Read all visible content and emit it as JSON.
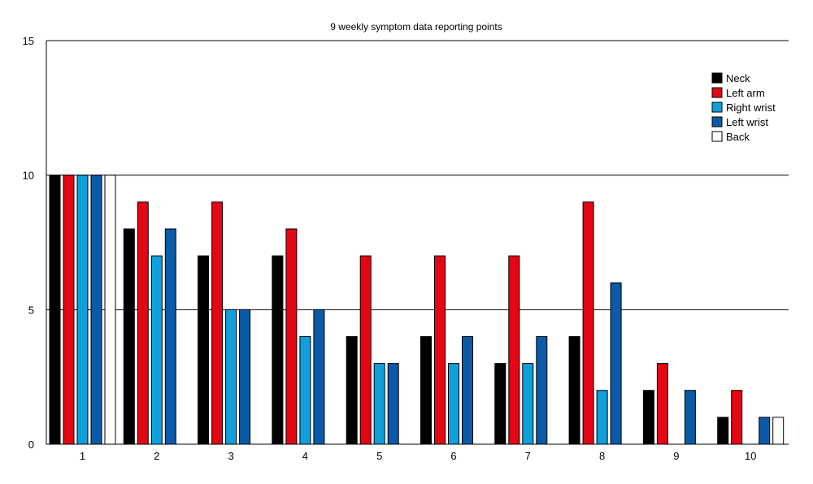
{
  "chart_data": {
    "type": "bar",
    "title": "9 weekly symptom data reporting points",
    "xlabel": "",
    "ylabel": "",
    "ylim": [
      0,
      15
    ],
    "yticks": [
      0,
      5,
      10,
      15
    ],
    "grid": "horizontal",
    "legend_position": "top-right",
    "categories": [
      "1",
      "2",
      "3",
      "4",
      "5",
      "6",
      "7",
      "8",
      "9",
      "10"
    ],
    "series": [
      {
        "name": "Neck",
        "color": "#000000",
        "values": [
          10,
          8,
          7,
          7,
          4,
          4,
          3,
          4,
          2,
          1
        ]
      },
      {
        "name": "Left arm",
        "color": "#e30613",
        "values": [
          10,
          9,
          9,
          8,
          7,
          7,
          7,
          9,
          3,
          2
        ]
      },
      {
        "name": "Right wrist",
        "color": "#0fa0dc",
        "values": [
          10,
          7,
          5,
          4,
          3,
          3,
          3,
          2,
          0,
          0
        ]
      },
      {
        "name": "Left wrist",
        "color": "#0a5aa8",
        "values": [
          10,
          8,
          5,
          5,
          3,
          4,
          4,
          6,
          2,
          1
        ]
      },
      {
        "name": "Back",
        "color": "#ffffff",
        "values": [
          10,
          0,
          0,
          0,
          0,
          0,
          0,
          0,
          0,
          1
        ]
      }
    ]
  }
}
